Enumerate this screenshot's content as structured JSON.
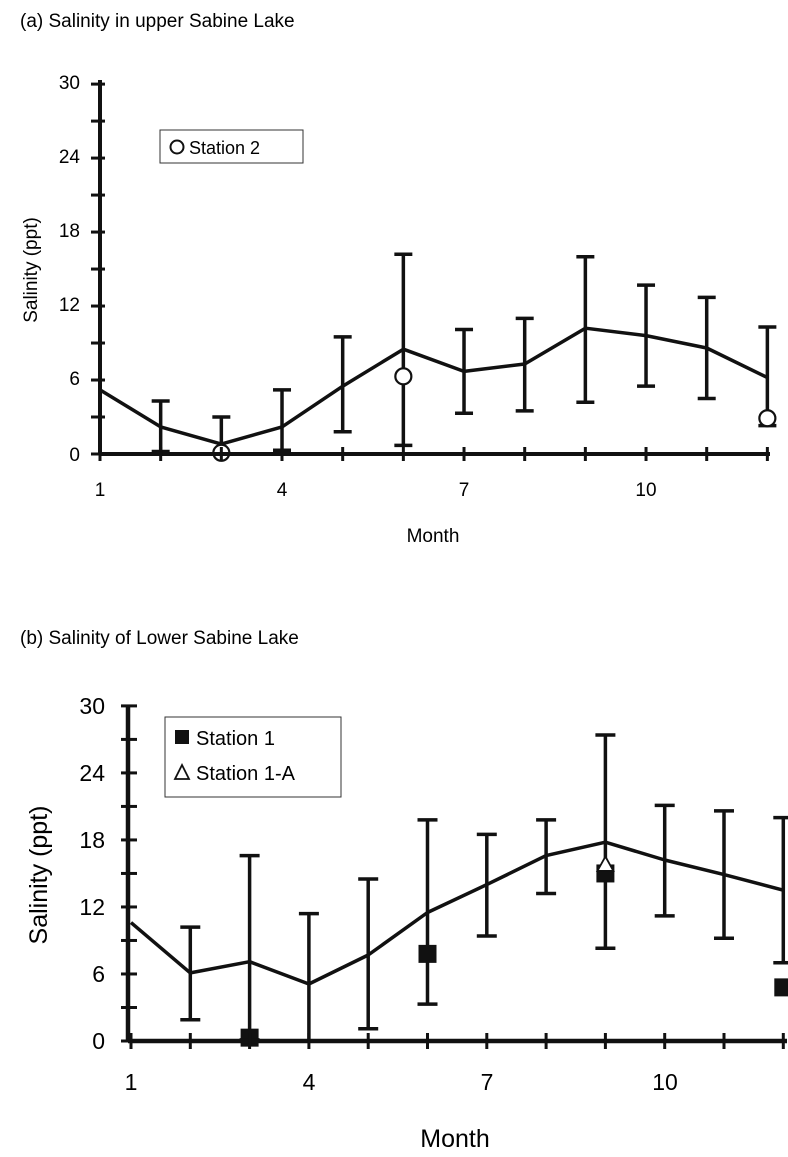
{
  "chart_data": [
    {
      "type": "line",
      "title": "(a) Salinity in upper Sabine Lake",
      "xlabel": "Month",
      "ylabel": "Salinity (ppt)",
      "xlim": [
        1,
        12
      ],
      "ylim": [
        0,
        30
      ],
      "xticks": [
        "1",
        "4",
        "7",
        "10"
      ],
      "yticks": [
        "0",
        "6",
        "12",
        "18",
        "24",
        "30"
      ],
      "grid": false,
      "legend_position": "top-left",
      "mean": {
        "x": [
          1,
          2,
          3,
          4,
          5,
          6,
          7,
          8,
          9,
          10,
          11,
          12
        ],
        "y": [
          5.2,
          2.2,
          0.8,
          2.2,
          5.5,
          8.5,
          6.7,
          7.3,
          10.2,
          9.6,
          8.6,
          6.2
        ],
        "err_low": [
          null,
          0.2,
          0.0,
          0.3,
          1.8,
          0.7,
          3.3,
          3.5,
          4.2,
          5.5,
          4.5,
          2.3
        ],
        "err_high": [
          null,
          4.3,
          3.0,
          5.2,
          9.5,
          16.2,
          10.1,
          11.0,
          16.0,
          13.7,
          12.7,
          10.3
        ]
      },
      "series": [
        {
          "name": "Station 2",
          "marker": "open-circle",
          "x": [
            3,
            6,
            12
          ],
          "y": [
            0.1,
            6.3,
            2.9
          ]
        }
      ]
    },
    {
      "type": "line",
      "title": "(b) Salinity of Lower Sabine Lake",
      "xlabel": "Month",
      "ylabel": "Salinity (ppt)",
      "xlim": [
        1,
        12
      ],
      "ylim": [
        0,
        30
      ],
      "xticks": [
        "1",
        "4",
        "7",
        "10"
      ],
      "yticks": [
        "0",
        "6",
        "12",
        "18",
        "24",
        "30"
      ],
      "grid": false,
      "legend_position": "top-left",
      "mean": {
        "x": [
          1,
          2,
          3,
          4,
          5,
          6,
          7,
          8,
          9,
          10,
          11,
          12
        ],
        "y": [
          10.6,
          6.1,
          7.1,
          5.1,
          7.7,
          11.5,
          14.0,
          16.6,
          17.8,
          16.2,
          14.9,
          13.5
        ],
        "err_low": [
          null,
          1.9,
          0.1,
          0.0,
          1.1,
          3.3,
          9.4,
          13.2,
          8.3,
          11.2,
          9.2,
          7.0
        ],
        "err_high": [
          null,
          10.2,
          16.6,
          11.4,
          14.5,
          19.8,
          18.5,
          19.8,
          27.4,
          21.1,
          20.6,
          20.0
        ]
      },
      "series": [
        {
          "name": "Station 1",
          "marker": "filled-square",
          "x": [
            3,
            6,
            9,
            12
          ],
          "y": [
            0.3,
            7.8,
            15.0,
            4.8
          ]
        },
        {
          "name": "Station 1-A",
          "marker": "open-triangle",
          "x": [
            9
          ],
          "y": [
            15.8
          ]
        }
      ]
    }
  ]
}
